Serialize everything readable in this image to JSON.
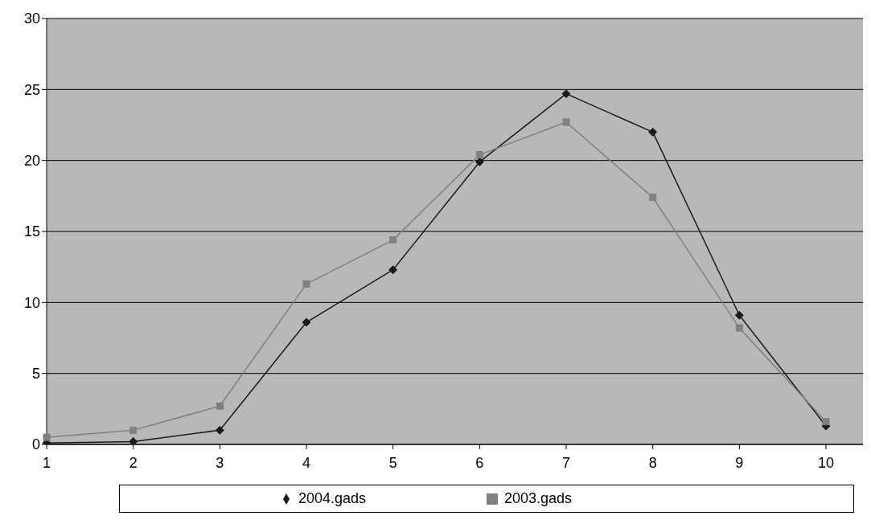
{
  "chart_data": {
    "type": "line",
    "categories": [
      "1",
      "2",
      "3",
      "4",
      "5",
      "6",
      "7",
      "8",
      "9",
      "10"
    ],
    "series": [
      {
        "name": "2004.gads",
        "color": "#1a1a1a",
        "marker": "diamond",
        "values": [
          0.1,
          0.2,
          1.0,
          8.6,
          12.3,
          19.9,
          24.7,
          22.0,
          9.1,
          1.3
        ]
      },
      {
        "name": "2003.gads",
        "color": "#808080",
        "marker": "square",
        "values": [
          0.5,
          1.0,
          2.7,
          11.3,
          14.4,
          20.4,
          22.7,
          17.4,
          8.2,
          1.6
        ]
      }
    ],
    "ylim": [
      0,
      30
    ],
    "yticks": [
      0,
      5,
      10,
      15,
      20,
      25,
      30
    ],
    "grid": "y",
    "legend": "bottom",
    "line_style": "solid"
  }
}
